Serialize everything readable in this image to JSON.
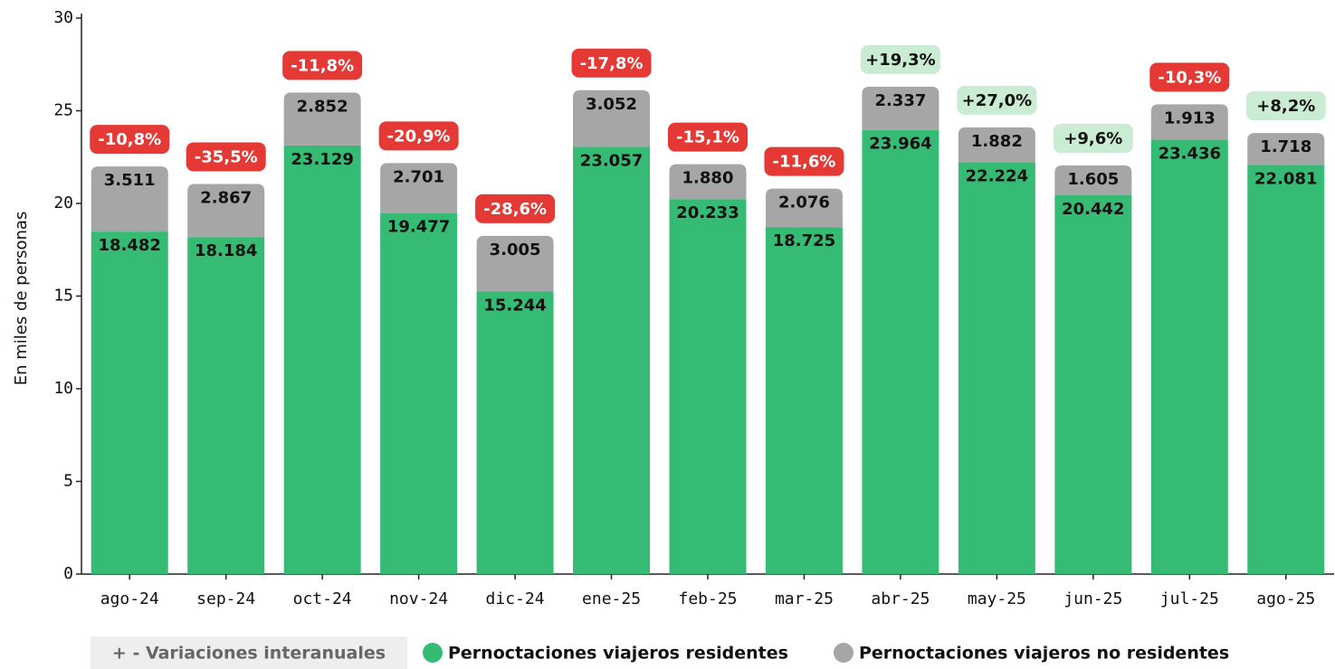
{
  "chart_data": {
    "type": "stacked_bar",
    "y_label": "En miles de personas",
    "categories": [
      "ago-24",
      "sep-24",
      "oct-24",
      "nov-24",
      "dic-24",
      "ene-25",
      "feb-25",
      "mar-25",
      "abr-25",
      "may-25",
      "jun-25",
      "jul-25",
      "ago-25"
    ],
    "series": [
      {
        "name": "Pernoctaciones viajeros residentes",
        "color": "#36bb74",
        "values": [
          18.482,
          18.184,
          23.129,
          19.477,
          15.244,
          23.057,
          20.233,
          18.725,
          23.964,
          22.224,
          20.442,
          23.436,
          22.081
        ],
        "value_labels": [
          "18.482",
          "18.184",
          "23.129",
          "19.477",
          "15.244",
          "23.057",
          "20.233",
          "18.725",
          "23.964",
          "22.224",
          "20.442",
          "23.436",
          "22.081"
        ]
      },
      {
        "name": "Pernoctaciones viajeros no residentes",
        "color": "#a6a6a6",
        "values": [
          3.511,
          2.867,
          2.852,
          2.701,
          3.005,
          3.052,
          1.88,
          2.076,
          2.337,
          1.882,
          1.605,
          1.913,
          1.718
        ],
        "value_labels": [
          "3.511",
          "2.867",
          "2.852",
          "2.701",
          "3.005",
          "3.052",
          "1.880",
          "2.076",
          "2.337",
          "1.882",
          "1.605",
          "1.913",
          "1.718"
        ]
      }
    ],
    "variation_legend": "+ - Variaciones interanuales",
    "variations": {
      "values": [
        -10.8,
        -35.5,
        -11.8,
        -20.9,
        -28.6,
        -17.8,
        -15.1,
        -11.6,
        19.3,
        27.0,
        9.6,
        -10.3,
        8.2
      ],
      "value_labels": [
        "-10,8%",
        "-35,5%",
        "-11,8%",
        "-20,9%",
        "-28,6%",
        "-17,8%",
        "-15,1%",
        "-11,6%",
        "+19,3%",
        "+27,0%",
        "+9,6%",
        "-10,3%",
        "+8,2%"
      ],
      "negative_color": "#e53935",
      "positive_color": "#c9ecd2"
    },
    "ylim": [
      0,
      30
    ],
    "yticks": [
      0,
      5,
      10,
      15,
      20,
      25,
      30
    ],
    "grid": false
  }
}
